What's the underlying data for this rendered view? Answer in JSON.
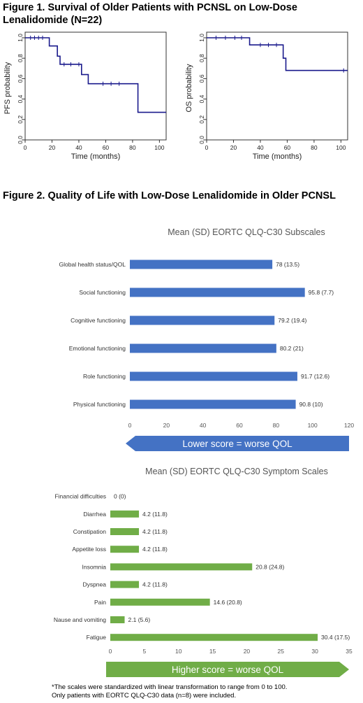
{
  "figure1": {
    "title": "Figure 1.  Survival of Older Patients with PCNSL on Low-Dose Lenalidomide (N=22)",
    "color": "#1a1a8c",
    "charts": [
      {
        "type": "line",
        "ylabel": "PFS probability",
        "xlabel": "Time (months)",
        "xlim": [
          0,
          105
        ],
        "ylim": [
          0,
          1
        ],
        "xticks": [
          "0",
          "20",
          "40",
          "60",
          "80",
          "100"
        ],
        "yticks": [
          "0.0",
          "0.2",
          "0.4",
          "0.6",
          "0.8",
          "1.0"
        ],
        "steps": [
          [
            0,
            1.0
          ],
          [
            18,
            1.0
          ],
          [
            18,
            0.92
          ],
          [
            24,
            0.92
          ],
          [
            24,
            0.82
          ],
          [
            26,
            0.82
          ],
          [
            26,
            0.74
          ],
          [
            42,
            0.74
          ],
          [
            42,
            0.64
          ],
          [
            47,
            0.64
          ],
          [
            47,
            0.55
          ],
          [
            84,
            0.55
          ],
          [
            84,
            0.27
          ],
          [
            105,
            0.27
          ]
        ],
        "censors": [
          [
            4,
            1.0
          ],
          [
            7,
            1.0
          ],
          [
            10,
            1.0
          ],
          [
            13,
            1.0
          ],
          [
            29,
            0.74
          ],
          [
            34,
            0.74
          ],
          [
            40,
            0.74
          ],
          [
            58,
            0.55
          ],
          [
            64,
            0.55
          ],
          [
            70,
            0.55
          ]
        ]
      },
      {
        "type": "line",
        "ylabel": "OS probability",
        "xlabel": "Time (months)",
        "xlim": [
          0,
          105
        ],
        "ylim": [
          0,
          1
        ],
        "xticks": [
          "0",
          "20",
          "40",
          "60",
          "80",
          "100"
        ],
        "yticks": [
          "0.0",
          "0.2",
          "0.4",
          "0.6",
          "0.8",
          "1.0"
        ],
        "steps": [
          [
            0,
            1.0
          ],
          [
            32,
            1.0
          ],
          [
            32,
            0.93
          ],
          [
            57,
            0.93
          ],
          [
            57,
            0.8
          ],
          [
            59,
            0.8
          ],
          [
            59,
            0.68
          ],
          [
            105,
            0.68
          ]
        ],
        "censors": [
          [
            7,
            1.0
          ],
          [
            14,
            1.0
          ],
          [
            21,
            1.0
          ],
          [
            26,
            1.0
          ],
          [
            40,
            0.93
          ],
          [
            46,
            0.93
          ],
          [
            52,
            0.93
          ],
          [
            102,
            0.68
          ]
        ]
      }
    ]
  },
  "figure2": {
    "title": "Figure 2. Quality of Life with Low-Dose Lenalidomide in Older PCNSL"
  },
  "chart_data": [
    {
      "type": "bar",
      "orientation": "horizontal",
      "title": "Mean (SD) EORTC QLQ-C30 Subscales",
      "color": "#4472c4",
      "categories": [
        "Global health status/QOL",
        "Social functioning",
        "Cognitive functioning",
        "Emotional functioning",
        "Role functioning",
        "Physical functioning"
      ],
      "values": [
        78,
        95.8,
        79.2,
        80.2,
        91.7,
        90.8
      ],
      "labels": [
        "78 (13.5)",
        "95.8 (7.7)",
        "79.2 (19.4)",
        "80.2 (21)",
        "91.7 (12.6)",
        "90.8 (10)"
      ],
      "xlim": [
        0,
        120
      ],
      "xticks": [
        0,
        20,
        40,
        60,
        80,
        100,
        120
      ],
      "arrow_label": "Lower score = worse QOL"
    },
    {
      "type": "bar",
      "orientation": "horizontal",
      "title": "Mean (SD) EORTC QLQ-C30 Symptom Scales",
      "color": "#70ad47",
      "categories": [
        "Financial difficulties",
        "Diarrhea",
        "Constipation",
        "Appetite loss",
        "Insomnia",
        "Dyspnea",
        "Pain",
        "Nause and vomiting",
        "Fatigue"
      ],
      "values": [
        0,
        4.2,
        4.2,
        4.2,
        20.8,
        4.2,
        14.6,
        2.1,
        30.4
      ],
      "labels": [
        "0 (0)",
        "4.2 (11.8)",
        "4.2 (11.8)",
        "4.2 (11.8)",
        "20.8 (24.8)",
        "4.2 (11.8)",
        "14.6 (20.8)",
        "2.1 (5.6)",
        "30.4 (17.5)"
      ],
      "xlim": [
        0,
        35
      ],
      "xticks": [
        0,
        5,
        10,
        15,
        20,
        25,
        30,
        35
      ],
      "arrow_label": "Higher score = worse QOL"
    }
  ],
  "footnote": {
    "line1": "*The scales were standardized with linear transformation to range from 0 to 100.",
    "line2": "Only patients with EORTC QLQ-C30 data (n=8) were included."
  }
}
